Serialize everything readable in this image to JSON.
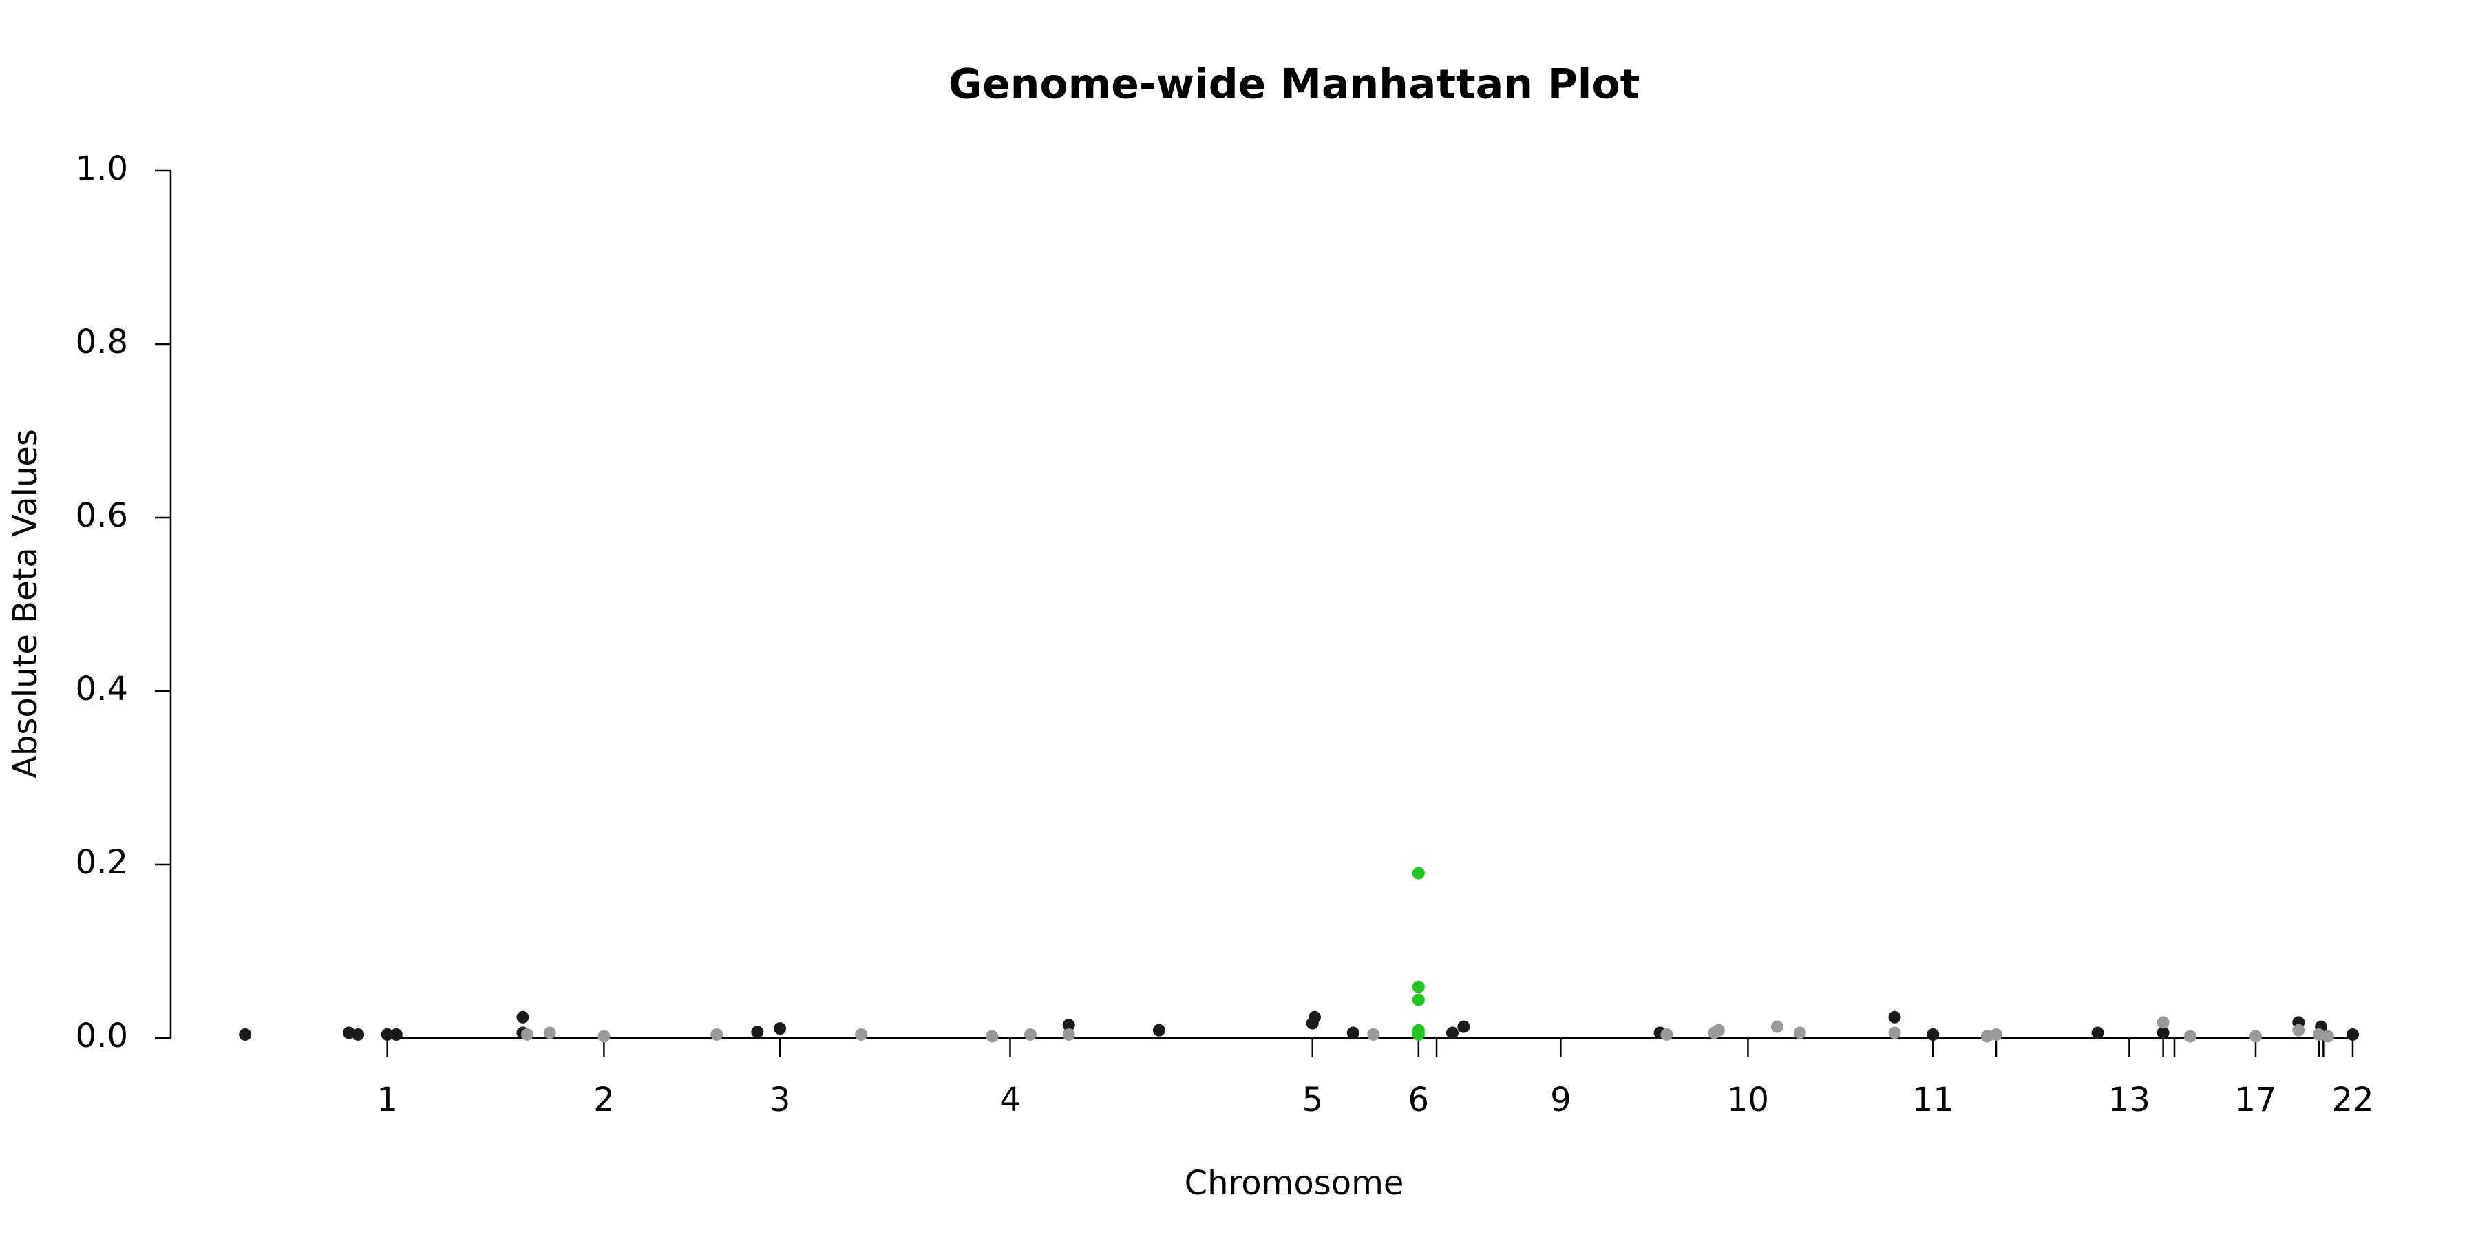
{
  "chart_data": {
    "type": "scatter",
    "title": "Genome-wide Manhattan Plot",
    "x_label": "Chromosome",
    "y_label": "Absolute Beta Values",
    "xlim": [
      0,
      100
    ],
    "ylim": [
      0,
      1
    ],
    "yticks": [
      {
        "value": 0,
        "label": "0.0"
      },
      0.2,
      0.4,
      0.6,
      0.8,
      {
        "value": 1,
        "label": "1.0"
      }
    ],
    "xticks": [
      {
        "value": 9.6,
        "label": "1"
      },
      {
        "value": 19.2,
        "label": "2"
      },
      {
        "value": 27.0,
        "label": "3"
      },
      {
        "value": 37.2,
        "label": "4"
      },
      {
        "value": 50.6,
        "label": "5"
      },
      {
        "value": 55.3,
        "label": "6"
      },
      {
        "value": 56.1,
        "label": null
      },
      {
        "value": 61.6,
        "label": "9"
      },
      {
        "value": 69.9,
        "label": "10"
      },
      {
        "value": 78.1,
        "label": "11"
      },
      {
        "value": 80.9,
        "label": null
      },
      {
        "value": 86.8,
        "label": "13"
      },
      {
        "value": 88.3,
        "label": null
      },
      {
        "value": 88.8,
        "label": null
      },
      {
        "value": 92.4,
        "label": "17"
      },
      {
        "value": 95.2,
        "label": null
      },
      {
        "value": 95.4,
        "label": null
      },
      {
        "value": 96.7,
        "label": "22"
      }
    ],
    "series": [
      {
        "color": "#1a1a1a",
        "x": [
          3.3,
          7.9,
          8.3,
          9.6,
          10.0,
          15.6,
          15.6,
          26.0,
          27.0,
          39.8,
          43.8,
          50.6,
          50.7,
          52.4,
          56.8,
          57.3,
          66.0,
          76.4,
          78.1,
          85.4,
          88.3,
          94.3,
          95.3,
          96.7
        ],
        "values": [
          0.004,
          0.006,
          0.004,
          0.004,
          0.004,
          0.024,
          0.006,
          0.007,
          0.011,
          0.015,
          0.009,
          0.017,
          0.024,
          0.006,
          0.006,
          0.013,
          0.006,
          0.024,
          0.004,
          0.006,
          0.006,
          0.018,
          0.013,
          0.004
        ]
      },
      {
        "color": "#999999",
        "x": [
          15.8,
          16.8,
          19.2,
          24.2,
          30.6,
          36.4,
          38.1,
          39.8,
          53.3,
          66.3,
          68.4,
          68.6,
          71.2,
          72.2,
          76.4,
          80.5,
          80.9,
          88.3,
          89.5,
          92.4,
          94.3,
          95.2,
          95.6
        ],
        "values": [
          0.004,
          0.006,
          0.002,
          0.004,
          0.004,
          0.002,
          0.004,
          0.004,
          0.004,
          0.004,
          0.006,
          0.009,
          0.013,
          0.006,
          0.006,
          0.002,
          0.004,
          0.018,
          0.002,
          0.002,
          0.009,
          0.004,
          0.002
        ]
      },
      {
        "color": "#22c422",
        "x": [
          55.3,
          55.3,
          55.3,
          55.3,
          55.3,
          55.3
        ],
        "values": [
          0.19,
          0.059,
          0.044,
          0.009,
          0.006,
          0.004
        ]
      }
    ]
  }
}
